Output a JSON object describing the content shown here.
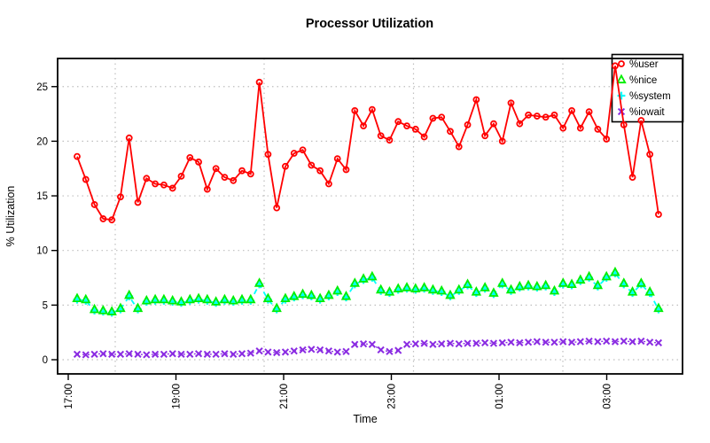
{
  "title": "Processor Utilization",
  "x_axis": {
    "label": "Time",
    "tick_labels": [
      "17:00",
      "19:00",
      "21:00",
      "23:00",
      "01:00",
      "03:00"
    ]
  },
  "y_axis": {
    "label": "% Utilization",
    "tick_labels": [
      "0",
      "5",
      "10",
      "15",
      "20",
      "25"
    ]
  },
  "legend": {
    "items": [
      {
        "label": "%user",
        "marker": "circle",
        "color": "#ff0000"
      },
      {
        "label": "%nice",
        "marker": "triangle",
        "color": "#00ee00"
      },
      {
        "label": "%system",
        "marker": "plus",
        "color": "#00ffff"
      },
      {
        "label": "%iowait",
        "marker": "x",
        "color": "#8a2be2"
      }
    ]
  },
  "chart_data": {
    "type": "line",
    "title": "Processor Utilization",
    "xlabel": "Time",
    "ylabel": "% Utilization",
    "ylim": [
      0,
      27.5
    ],
    "x_ticks": [
      "17:00",
      "19:00",
      "21:00",
      "23:00",
      "01:00",
      "03:00"
    ],
    "x_start_time": "17:10",
    "x_step_minutes": 10,
    "grid": "dotted",
    "legend_position": "top-right",
    "series": [
      {
        "name": "%user",
        "color": "#ff0000",
        "marker": "circle",
        "line": "solid",
        "values": [
          18.6,
          16.5,
          14.2,
          12.9,
          12.8,
          14.9,
          20.3,
          14.4,
          16.6,
          16.1,
          16.0,
          15.7,
          16.8,
          18.5,
          18.1,
          15.6,
          17.5,
          16.7,
          16.4,
          17.3,
          17.0,
          25.4,
          18.8,
          13.9,
          17.7,
          18.9,
          19.2,
          17.8,
          17.3,
          16.1,
          18.4,
          17.4,
          22.8,
          21.4,
          22.9,
          20.5,
          20.1,
          21.8,
          21.4,
          21.1,
          20.4,
          22.1,
          22.2,
          20.9,
          19.5,
          21.5,
          23.8,
          20.5,
          21.6,
          20.0,
          23.5,
          21.6,
          22.4,
          22.3,
          22.2,
          22.4,
          21.2,
          22.8,
          21.2,
          22.7,
          21.1,
          20.2,
          26.9,
          21.5,
          16.7,
          21.9,
          18.8,
          13.3
        ]
      },
      {
        "name": "%nice",
        "color": "#00ee00",
        "marker": "triangle",
        "line": "none",
        "values": [
          5.6,
          5.5,
          4.6,
          4.5,
          4.4,
          4.7,
          5.9,
          4.7,
          5.4,
          5.5,
          5.5,
          5.4,
          5.3,
          5.5,
          5.6,
          5.5,
          5.3,
          5.5,
          5.4,
          5.5,
          5.5,
          7.0,
          5.6,
          4.7,
          5.6,
          5.8,
          6.0,
          5.9,
          5.6,
          5.9,
          6.3,
          5.8,
          7.0,
          7.4,
          7.6,
          6.4,
          6.2,
          6.5,
          6.6,
          6.5,
          6.6,
          6.4,
          6.3,
          5.9,
          6.4,
          6.9,
          6.2,
          6.6,
          6.1,
          7.0,
          6.4,
          6.7,
          6.8,
          6.7,
          6.8,
          6.3,
          7.0,
          6.9,
          7.3,
          7.6,
          6.8,
          7.6,
          8.0,
          7.0,
          6.2,
          7.0,
          6.2,
          4.7
        ]
      },
      {
        "name": "%system",
        "color": "#00ffff",
        "marker": "plus",
        "line": "dashed",
        "values": [
          5.5,
          5.4,
          4.5,
          4.4,
          4.3,
          4.6,
          5.8,
          4.6,
          5.3,
          5.4,
          5.4,
          5.3,
          5.2,
          5.4,
          5.5,
          5.4,
          5.2,
          5.4,
          5.3,
          5.4,
          5.4,
          6.9,
          5.5,
          4.6,
          5.5,
          5.7,
          5.9,
          5.8,
          5.5,
          5.8,
          6.2,
          5.7,
          6.9,
          7.3,
          7.5,
          6.3,
          6.1,
          6.4,
          6.5,
          6.4,
          6.5,
          6.3,
          6.2,
          5.8,
          6.3,
          6.8,
          6.1,
          6.5,
          6.0,
          6.9,
          6.3,
          6.6,
          6.7,
          6.6,
          6.7,
          6.2,
          6.9,
          6.8,
          7.2,
          7.5,
          6.7,
          7.5,
          7.9,
          6.9,
          6.1,
          6.9,
          6.1,
          4.6
        ]
      },
      {
        "name": "%iowait",
        "color": "#8a2be2",
        "marker": "x",
        "line": "dashed",
        "values": [
          0.5,
          0.45,
          0.5,
          0.55,
          0.5,
          0.5,
          0.55,
          0.5,
          0.45,
          0.5,
          0.5,
          0.55,
          0.5,
          0.5,
          0.55,
          0.5,
          0.5,
          0.55,
          0.5,
          0.55,
          0.6,
          0.8,
          0.7,
          0.65,
          0.7,
          0.8,
          0.9,
          0.95,
          0.9,
          0.8,
          0.7,
          0.75,
          1.4,
          1.45,
          1.4,
          0.9,
          0.75,
          0.85,
          1.4,
          1.45,
          1.5,
          1.4,
          1.45,
          1.5,
          1.45,
          1.5,
          1.5,
          1.55,
          1.5,
          1.55,
          1.6,
          1.55,
          1.6,
          1.65,
          1.6,
          1.6,
          1.65,
          1.6,
          1.65,
          1.7,
          1.65,
          1.7,
          1.65,
          1.7,
          1.65,
          1.7,
          1.6,
          1.55
        ]
      }
    ]
  },
  "colors": {
    "background": "#ffffff",
    "plot_border": "#000000",
    "grid": "#bfbfbf",
    "user": "#ff0000",
    "nice": "#00ee00",
    "system": "#00ffff",
    "iowait": "#8a2be2"
  }
}
